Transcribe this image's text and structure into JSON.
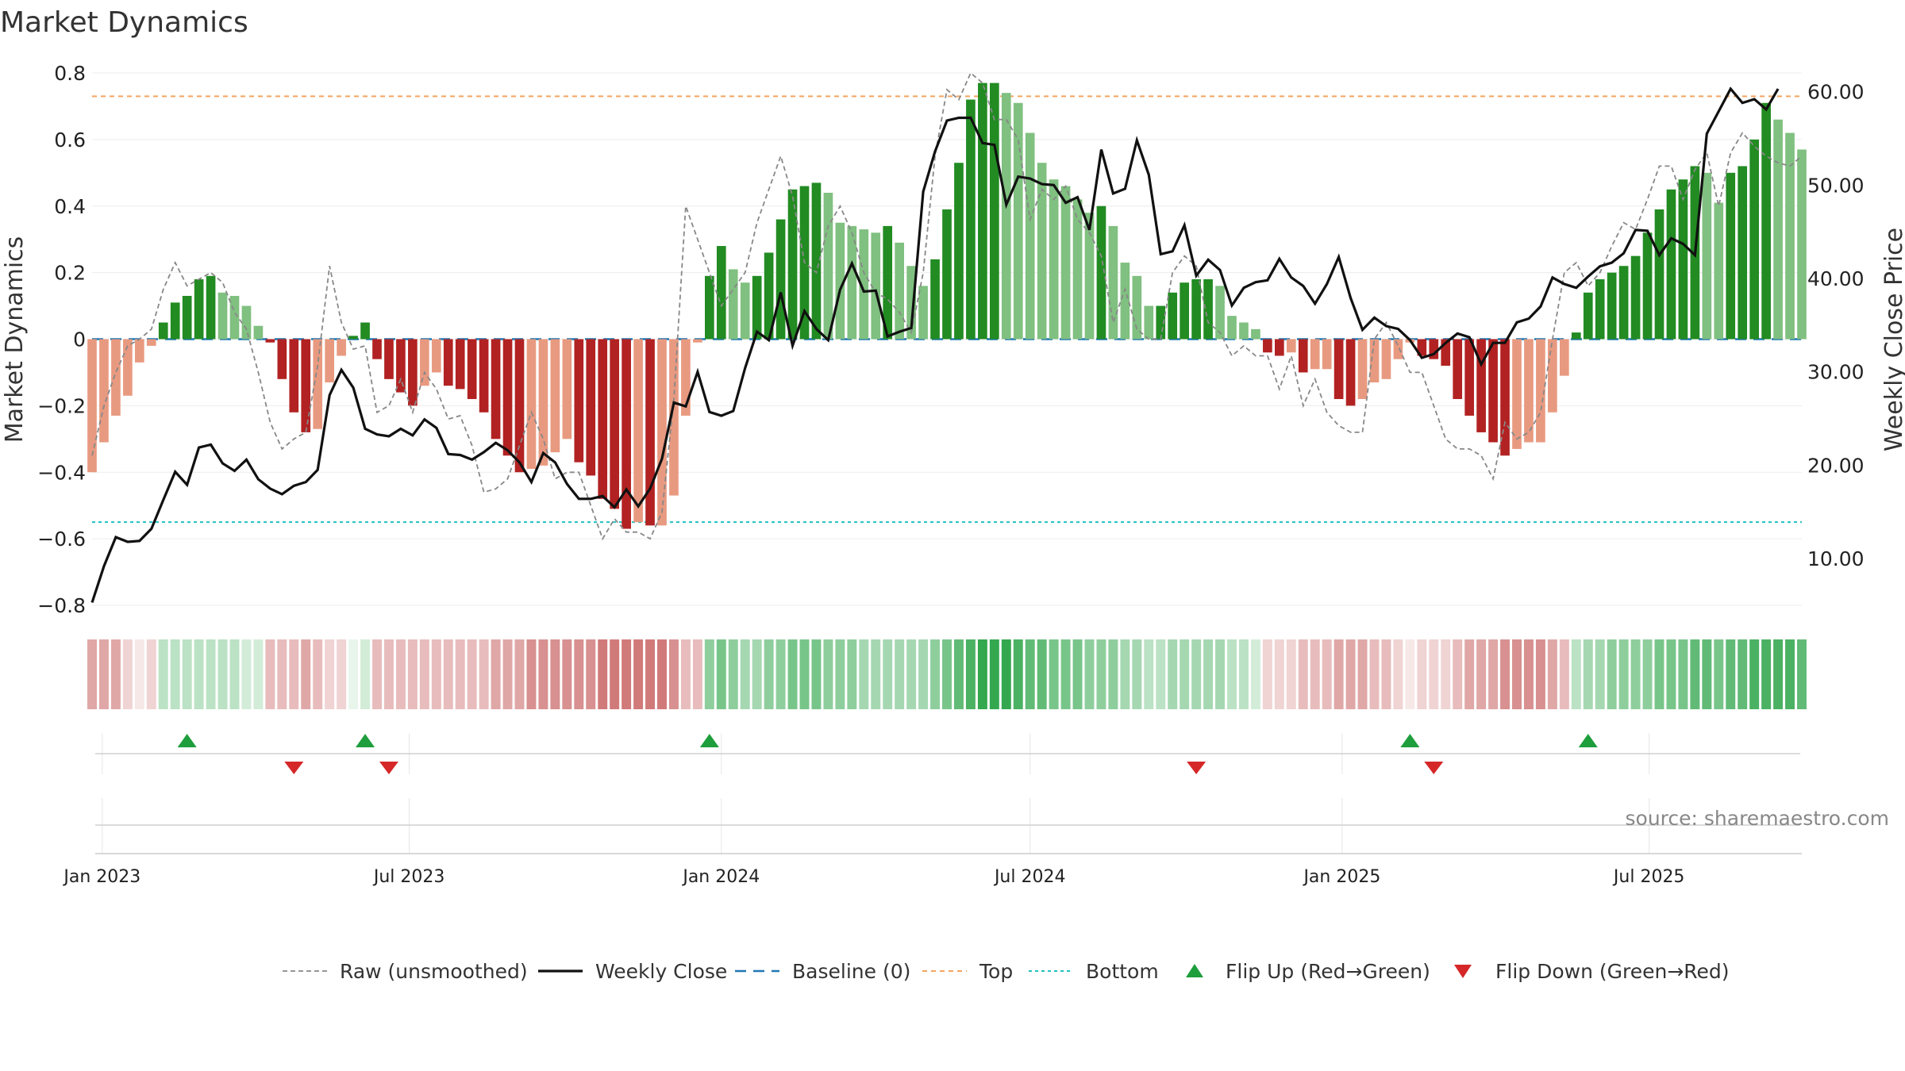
{
  "page": {
    "title": "Market Dynamics",
    "source": "source: sharemaestro.com"
  },
  "colors": {
    "green_strong": "#228b22",
    "green_light": "#80c080",
    "red_strong": "#b22222",
    "red_light": "#e89a80",
    "price_line": "#111111",
    "raw_line": "#888888",
    "baseline": "#1f77b4",
    "top_line": "#f4a460",
    "bottom_line": "#20c0c0",
    "flip_up": "#1e9e3c",
    "flip_down": "#d62728"
  },
  "chart_data": {
    "type": "bar",
    "title": "Market Dynamics",
    "ylabel_left": "Market Dynamics",
    "ylabel_right": "Weekly Close Price",
    "ylim_left": [
      -0.8,
      0.8
    ],
    "yticks_left": [
      "0.8",
      "0.6",
      "0.4",
      "0.2",
      "0",
      "−0.2",
      "−0.4",
      "−0.6",
      "−0.8"
    ],
    "ylim_right": [
      5,
      62
    ],
    "yticks_right": [
      "60.00",
      "50.00",
      "40.00",
      "30.00",
      "20.00",
      "10.00"
    ],
    "x_range": [
      "2022-12-26",
      "2025-09-29"
    ],
    "xticks": [
      "Jan 2023",
      "Jul 2023",
      "Jan 2024",
      "Jul 2024",
      "Jan 2025",
      "Jul 2025"
    ],
    "top_level": 0.73,
    "bottom_level": -0.55,
    "baseline": 0,
    "legend": {
      "placement": "bottom-center",
      "items": [
        "Raw (unsmoothed)",
        "Weekly Close",
        "Baseline (0)",
        "Top",
        "Bottom",
        "Flip Up (Red→Green)",
        "Flip Down (Green→Red)"
      ]
    },
    "bar_start_date": "2022-12-26",
    "bar_interval": "weekly",
    "series": [
      {
        "name": "Market Dynamics",
        "values": [
          -0.4,
          -0.31,
          -0.23,
          -0.17,
          -0.07,
          -0.02,
          0.05,
          0.11,
          0.13,
          0.18,
          0.19,
          0.14,
          0.13,
          0.1,
          0.04,
          -0.01,
          -0.12,
          -0.22,
          -0.28,
          -0.27,
          -0.13,
          -0.05,
          0.01,
          0.05,
          -0.06,
          -0.12,
          -0.16,
          -0.2,
          -0.14,
          -0.1,
          -0.14,
          -0.15,
          -0.18,
          -0.22,
          -0.3,
          -0.35,
          -0.4,
          -0.39,
          -0.38,
          -0.34,
          -0.3,
          -0.37,
          -0.41,
          -0.48,
          -0.51,
          -0.57,
          -0.55,
          -0.56,
          -0.56,
          -0.47,
          -0.23,
          -0.01,
          0.19,
          0.28,
          0.21,
          0.17,
          0.19,
          0.26,
          0.36,
          0.45,
          0.46,
          0.47,
          0.44,
          0.35,
          0.34,
          0.33,
          0.32,
          0.34,
          0.29,
          0.22,
          0.16,
          0.24,
          0.39,
          0.53,
          0.72,
          0.77,
          0.77,
          0.74,
          0.71,
          0.62,
          0.53,
          0.48,
          0.46,
          0.42,
          0.38,
          0.4,
          0.34,
          0.23,
          0.19,
          0.1,
          0.1,
          0.14,
          0.17,
          0.18,
          0.18,
          0.16,
          0.07,
          0.05,
          0.03,
          -0.04,
          -0.05,
          -0.04,
          -0.1,
          -0.09,
          -0.09,
          -0.18,
          -0.2,
          -0.18,
          -0.13,
          -0.12,
          -0.06,
          -0.01,
          -0.05,
          -0.06,
          -0.08,
          -0.18,
          -0.23,
          -0.28,
          -0.31,
          -0.35,
          -0.33,
          -0.31,
          -0.31,
          -0.22,
          -0.11,
          0.02,
          0.14,
          0.18,
          0.2,
          0.22,
          0.25,
          0.32,
          0.39,
          0.45,
          0.48,
          0.52,
          0.5,
          0.41,
          0.5,
          0.52,
          0.6,
          0.71,
          0.66,
          0.62,
          0.57
        ]
      },
      {
        "name": "Raw (unsmoothed)",
        "values": [
          -0.35,
          -0.2,
          -0.1,
          -0.02,
          0.0,
          0.03,
          0.15,
          0.23,
          0.16,
          0.18,
          0.2,
          0.17,
          0.08,
          0.03,
          -0.1,
          -0.25,
          -0.33,
          -0.3,
          -0.28,
          -0.08,
          0.22,
          0.05,
          -0.03,
          -0.02,
          -0.22,
          -0.2,
          -0.12,
          -0.22,
          -0.1,
          -0.15,
          -0.24,
          -0.23,
          -0.32,
          -0.46,
          -0.45,
          -0.42,
          -0.32,
          -0.22,
          -0.3,
          -0.42,
          -0.4,
          -0.4,
          -0.5,
          -0.6,
          -0.54,
          -0.58,
          -0.58,
          -0.6,
          -0.52,
          -0.18,
          0.4,
          0.3,
          0.2,
          0.1,
          0.15,
          0.2,
          0.35,
          0.45,
          0.55,
          0.43,
          0.23,
          0.2,
          0.34,
          0.4,
          0.32,
          0.2,
          0.14,
          0.12,
          0.08,
          0.02,
          0.2,
          0.55,
          0.75,
          0.72,
          0.8,
          0.77,
          0.66,
          0.66,
          0.6,
          0.36,
          0.45,
          0.42,
          0.46,
          0.36,
          0.32,
          0.25,
          0.05,
          0.15,
          0.03,
          0.0,
          0.0,
          0.2,
          0.25,
          0.22,
          0.05,
          0.02,
          -0.05,
          -0.02,
          -0.05,
          -0.05,
          -0.15,
          -0.05,
          -0.2,
          -0.12,
          -0.22,
          -0.26,
          -0.28,
          -0.28,
          0.0,
          0.05,
          -0.02,
          -0.1,
          -0.1,
          -0.2,
          -0.3,
          -0.33,
          -0.33,
          -0.35,
          -0.42,
          -0.25,
          -0.3,
          -0.28,
          -0.22,
          0.0,
          0.2,
          0.23,
          0.16,
          0.2,
          0.28,
          0.35,
          0.33,
          0.42,
          0.52,
          0.52,
          0.42,
          0.51,
          0.56,
          0.4,
          0.56,
          0.62,
          0.58,
          0.55,
          0.53,
          0.52,
          0.55
        ]
      },
      {
        "name": "Weekly Close",
        "values": [
          5.3,
          9.2,
          12.3,
          11.8,
          11.9,
          13.2,
          16.3,
          19.3,
          17.9,
          21.9,
          22.2,
          20.2,
          19.4,
          20.6,
          18.5,
          17.5,
          16.9,
          17.8,
          18.2,
          19.5,
          27.5,
          30.2,
          28.3,
          23.9,
          23.3,
          23.1,
          23.9,
          23.2,
          24.9,
          24.0,
          21.2,
          21.1,
          20.6,
          21.4,
          22.4,
          21.6,
          20.3,
          18.2,
          21.3,
          20.3,
          18.0,
          16.4,
          16.4,
          16.7,
          15.5,
          17.4,
          15.6,
          17.5,
          20.7,
          26.7,
          26.3,
          30.0,
          25.7,
          25.3,
          25.8,
          30.4,
          34.3,
          33.4,
          38.5,
          32.8,
          36.5,
          34.6,
          33.4,
          38.8,
          41.6,
          38.6,
          38.7,
          33.8,
          34.3,
          34.7,
          49.3,
          53.6,
          56.9,
          57.2,
          57.2,
          54.5,
          54.3,
          47.9,
          50.9,
          50.7,
          50.1,
          50.0,
          48.1,
          48.7,
          45.2,
          53.8,
          49.1,
          49.6,
          54.8,
          51.1,
          42.6,
          42.9,
          45.7,
          40.3,
          42.0,
          40.9,
          37.1,
          39.0,
          39.6,
          39.8,
          42.1,
          40.1,
          39.2,
          37.3,
          39.4,
          42.3,
          37.9,
          34.5,
          35.8,
          34.9,
          34.6,
          33.4,
          31.5,
          31.9,
          33.1,
          34.1,
          33.7,
          30.8,
          33.1,
          33.1,
          35.3,
          35.7,
          37.0,
          40.1,
          39.4,
          39.0,
          40.2,
          41.3,
          41.7,
          42.7,
          45.2,
          45.1,
          42.5,
          44.3,
          43.7,
          42.5,
          55.5,
          57.9,
          60.3,
          58.8,
          59.2,
          58.1,
          60.3
        ]
      }
    ],
    "strip_strength": [
      0.4,
      0.4,
      0.4,
      0.2,
      0.1,
      0.2,
      0.3,
      0.3,
      0.3,
      0.3,
      0.3,
      0.3,
      0.3,
      0.2,
      0.2,
      0.3,
      0.3,
      0.3,
      0.4,
      0.3,
      0.2,
      0.2,
      0.1,
      0.2,
      0.3,
      0.3,
      0.3,
      0.3,
      0.3,
      0.3,
      0.3,
      0.3,
      0.3,
      0.3,
      0.4,
      0.4,
      0.4,
      0.5,
      0.5,
      0.5,
      0.5,
      0.5,
      0.5,
      0.6,
      0.6,
      0.6,
      0.6,
      0.6,
      0.6,
      0.5,
      0.3,
      0.3,
      0.5,
      0.6,
      0.5,
      0.4,
      0.4,
      0.5,
      0.5,
      0.6,
      0.6,
      0.6,
      0.5,
      0.5,
      0.5,
      0.4,
      0.4,
      0.4,
      0.4,
      0.4,
      0.4,
      0.5,
      0.6,
      0.7,
      0.8,
      0.9,
      0.9,
      0.9,
      0.8,
      0.7,
      0.7,
      0.6,
      0.6,
      0.6,
      0.5,
      0.5,
      0.5,
      0.4,
      0.4,
      0.3,
      0.3,
      0.4,
      0.4,
      0.4,
      0.4,
      0.4,
      0.3,
      0.3,
      0.2,
      0.2,
      0.2,
      0.2,
      0.3,
      0.3,
      0.3,
      0.4,
      0.4,
      0.4,
      0.3,
      0.3,
      0.2,
      0.1,
      0.2,
      0.2,
      0.2,
      0.3,
      0.4,
      0.4,
      0.4,
      0.5,
      0.5,
      0.5,
      0.5,
      0.4,
      0.3,
      0.3,
      0.4,
      0.4,
      0.5,
      0.5,
      0.5,
      0.5,
      0.6,
      0.6,
      0.6,
      0.7,
      0.7,
      0.6,
      0.7,
      0.7,
      0.8,
      0.8,
      0.8,
      0.8,
      0.7
    ],
    "flips": [
      {
        "date": "2023-02-20",
        "direction": "up"
      },
      {
        "date": "2023-04-24",
        "direction": "down"
      },
      {
        "date": "2023-06-05",
        "direction": "up"
      },
      {
        "date": "2023-06-19",
        "direction": "down"
      },
      {
        "date": "2023-12-25",
        "direction": "up"
      },
      {
        "date": "2024-10-07",
        "direction": "down"
      },
      {
        "date": "2025-02-10",
        "direction": "up"
      },
      {
        "date": "2025-02-24",
        "direction": "down"
      },
      {
        "date": "2025-05-26",
        "direction": "up"
      }
    ]
  }
}
